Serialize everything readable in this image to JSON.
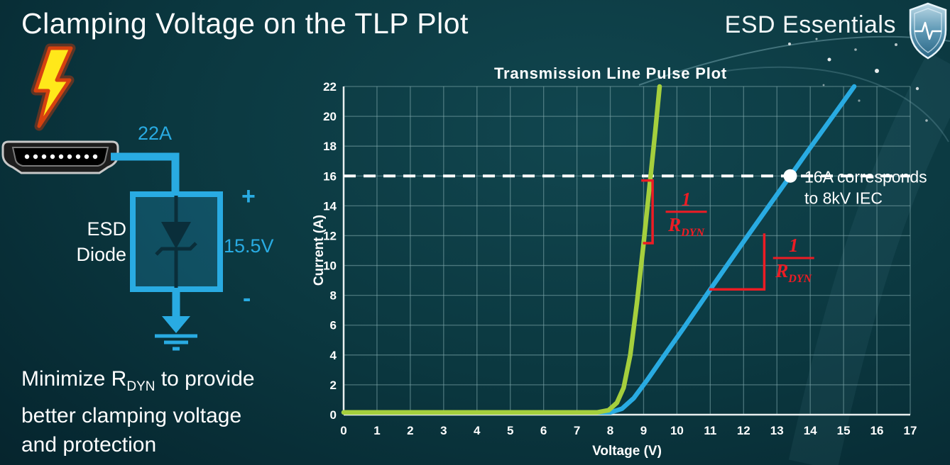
{
  "slide": {
    "title": "Clamping Voltage on the TLP Plot",
    "brand": "ESD Essentials"
  },
  "icons": {
    "brand_icon": "shield-pulse",
    "surge_icon": "lightning-bolt",
    "port_icon": "hdmi-connector",
    "ground_icon": "ground-symbol"
  },
  "colors": {
    "accent_cyan": "#29abe2",
    "curve_green": "#a5cf3d",
    "curve_blue": "#29abe2",
    "annotation_red": "#ed1c24",
    "background": "#0b3840"
  },
  "diagram": {
    "surge_current_label": "22A",
    "device_label_line1": "ESD",
    "device_label_line2": "Diode",
    "polarity_plus": "+",
    "polarity_minus": "-",
    "clamping_voltage_label": "15.5V"
  },
  "takeaway": {
    "line1_pre": "Minimize R",
    "line1_sub": "DYN",
    "line1_post": " to provide",
    "line2": "better clamping voltage",
    "line3": "and protection"
  },
  "chart_data": {
    "type": "line",
    "title": "Transmission Line Pulse Plot",
    "xlabel": "Voltage (V)",
    "ylabel": "Current (A)",
    "xlim": [
      0,
      17
    ],
    "ylim": [
      0,
      22
    ],
    "xticks": [
      0,
      1,
      2,
      3,
      4,
      5,
      6,
      7,
      8,
      9,
      10,
      11,
      12,
      13,
      14,
      15,
      16,
      17
    ],
    "yticks": [
      0,
      2,
      4,
      6,
      8,
      10,
      12,
      14,
      16,
      18,
      20,
      22
    ],
    "grid": true,
    "legend": "none",
    "series": [
      {
        "name": "blue-curve-high-rdyn",
        "color": "#29abe2",
        "points": [
          [
            0,
            0.15
          ],
          [
            8.0,
            0.15
          ],
          [
            8.35,
            0.4
          ],
          [
            8.7,
            1.1
          ],
          [
            9.1,
            2.3
          ],
          [
            9.6,
            3.9
          ],
          [
            10.2,
            5.8
          ],
          [
            11.0,
            8.4
          ],
          [
            12.0,
            11.6
          ],
          [
            13.0,
            14.75
          ],
          [
            13.4,
            16
          ],
          [
            14.0,
            17.9
          ],
          [
            15.0,
            21.0
          ],
          [
            15.32,
            22
          ]
        ]
      },
      {
        "name": "green-curve-low-rdyn",
        "color": "#a5cf3d",
        "points": [
          [
            0,
            0.15
          ],
          [
            7.6,
            0.15
          ],
          [
            7.95,
            0.3
          ],
          [
            8.2,
            0.8
          ],
          [
            8.4,
            1.8
          ],
          [
            8.6,
            4.0
          ],
          [
            8.8,
            7.5
          ],
          [
            9.0,
            11.5
          ],
          [
            9.2,
            15.8
          ],
          [
            9.35,
            19.0
          ],
          [
            9.48,
            22
          ]
        ]
      }
    ],
    "reference_line": {
      "y": 16,
      "color": "#ffffff",
      "style": "dashed"
    },
    "marker": {
      "x": 13.4,
      "y": 16,
      "color": "#ffffff",
      "label_lines": [
        "16A corresponds",
        "to 8kV IEC"
      ]
    },
    "annotation_color": "#ed1c24",
    "slope_marks": [
      {
        "curve": "green",
        "points": [
          [
            8.93,
            15.7
          ],
          [
            9.27,
            15.7
          ],
          [
            9.27,
            11.5
          ],
          [
            8.98,
            11.5
          ]
        ]
      },
      {
        "curve": "blue",
        "points": [
          [
            10.97,
            8.4
          ],
          [
            12.62,
            8.4
          ],
          [
            12.62,
            12.15
          ]
        ]
      }
    ],
    "fractions": [
      {
        "numerator": "1",
        "denominator": "R",
        "denominator_sub": "DYN",
        "x": 10.28,
        "y": 13.6
      },
      {
        "numerator": "1",
        "denominator": "R",
        "denominator_sub": "DYN",
        "x": 13.5,
        "y": 10.5
      }
    ]
  }
}
